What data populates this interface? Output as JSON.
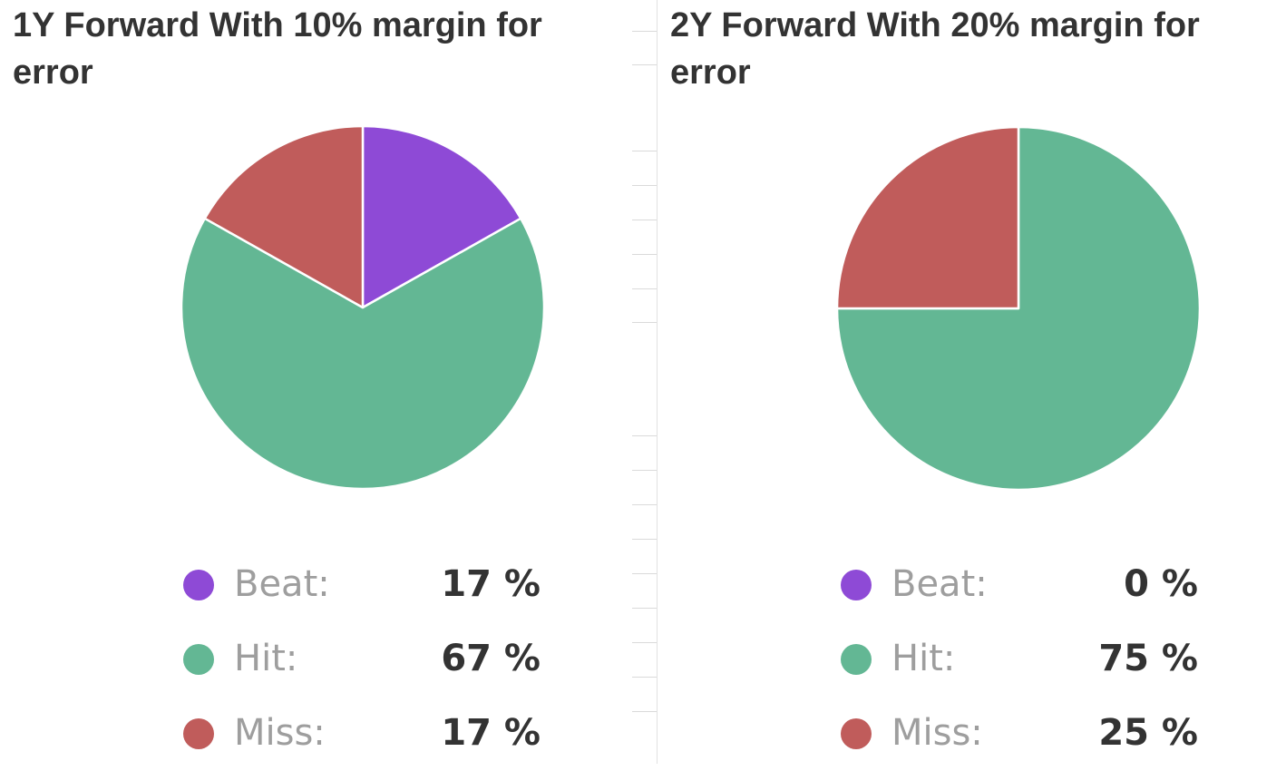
{
  "chart_data": [
    {
      "type": "pie",
      "title": "1Y Forward With 10% margin for error",
      "categories": [
        "Beat:",
        "Hit:",
        "Miss:"
      ],
      "values": [
        17,
        67,
        17
      ],
      "value_labels": [
        "17 %",
        "67 %",
        "17 %"
      ],
      "colors": [
        "#8e4ad6",
        "#63b794",
        "#c05c5b"
      ],
      "legend": "bottom"
    },
    {
      "type": "pie",
      "title": "2Y Forward With 20% margin for error",
      "categories": [
        "Beat:",
        "Hit:",
        "Miss:"
      ],
      "values": [
        0,
        75,
        25
      ],
      "value_labels": [
        "0 %",
        "75 %",
        "25 %"
      ],
      "colors": [
        "#8e4ad6",
        "#63b794",
        "#c05c5b"
      ],
      "legend": "bottom"
    }
  ]
}
